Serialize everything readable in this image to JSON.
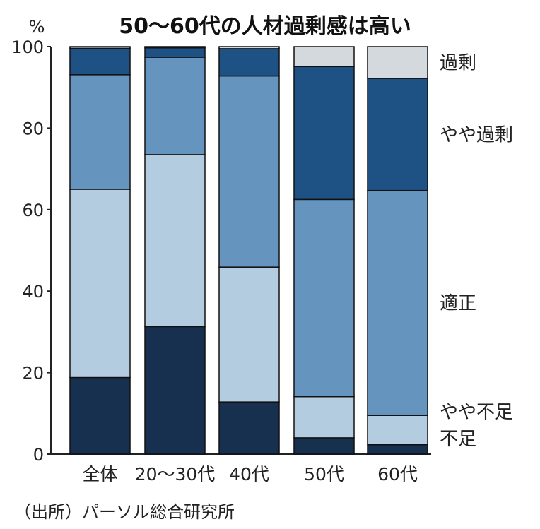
{
  "chart_data": {
    "type": "bar",
    "stacked": true,
    "title": "50～60代の人材過剰感は高い",
    "ylabel": "%",
    "ylim": [
      0,
      100
    ],
    "yticks": [
      "0",
      "20",
      "40",
      "60",
      "80",
      "100"
    ],
    "categories": [
      "全体",
      "20～30代",
      "40代",
      "50代",
      "60代"
    ],
    "series": [
      {
        "name": "不足",
        "color": "#17304f",
        "values": [
          18.8,
          31.3,
          12.8,
          4.0,
          2.3
        ]
      },
      {
        "name": "やや不足",
        "color": "#b4cce0",
        "values": [
          46.2,
          42.2,
          33.1,
          10.1,
          7.2
        ]
      },
      {
        "name": "適正",
        "color": "#6594bf",
        "values": [
          28.1,
          23.9,
          46.9,
          48.4,
          55.2
        ]
      },
      {
        "name": "やや過剰",
        "color": "#1e5184",
        "values": [
          6.5,
          2.3,
          6.7,
          32.6,
          27.5
        ]
      },
      {
        "name": "過剰",
        "color": "#d4d9de",
        "values": [
          0.4,
          0.3,
          0.5,
          4.9,
          7.8
        ]
      }
    ],
    "legend_position": "right",
    "grid": false,
    "source": "（出所）パーソル総合研究所"
  }
}
